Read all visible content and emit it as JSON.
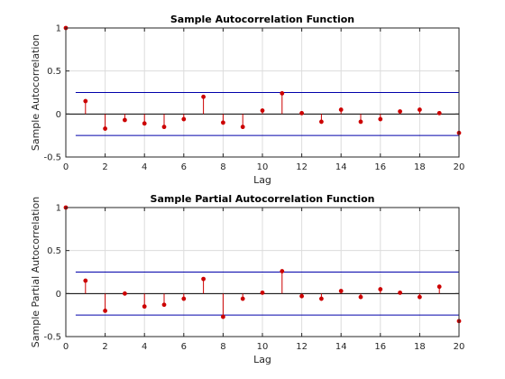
{
  "figure": {
    "background": "#ffffff",
    "stem_color": "#cc0000",
    "bound_color": "#0000aa",
    "grid": true
  },
  "chart_data": [
    {
      "type": "stem",
      "title": "Sample Autocorrelation Function",
      "xlabel": "Lag",
      "ylabel": "Sample Autocorrelation",
      "xlim": [
        0,
        20
      ],
      "ylim": [
        -0.5,
        1
      ],
      "xticks": [
        0,
        2,
        4,
        6,
        8,
        10,
        12,
        14,
        16,
        18,
        20
      ],
      "yticks": [
        -0.5,
        0,
        0.5,
        1
      ],
      "yticklabels": [
        "-0.5",
        "0",
        "0.5",
        "1"
      ],
      "lags": [
        0,
        1,
        2,
        3,
        4,
        5,
        6,
        7,
        8,
        9,
        10,
        11,
        12,
        13,
        14,
        15,
        16,
        17,
        18,
        19,
        20
      ],
      "values": [
        1.0,
        0.15,
        -0.17,
        -0.07,
        -0.11,
        -0.15,
        -0.06,
        0.2,
        -0.1,
        -0.15,
        0.04,
        0.24,
        0.01,
        -0.09,
        0.05,
        -0.09,
        -0.06,
        0.03,
        0.05,
        0.01,
        -0.22
      ],
      "confidence_bounds": [
        0.25,
        -0.25
      ]
    },
    {
      "type": "stem",
      "title": "Sample Partial Autocorrelation Function",
      "xlabel": "Lag",
      "ylabel": "Sample Partial Autocorrelation",
      "xlim": [
        0,
        20
      ],
      "ylim": [
        -0.5,
        1
      ],
      "xticks": [
        0,
        2,
        4,
        6,
        8,
        10,
        12,
        14,
        16,
        18,
        20
      ],
      "yticks": [
        -0.5,
        0,
        0.5,
        1
      ],
      "yticklabels": [
        "-0.5",
        "0",
        "0.5",
        "1"
      ],
      "lags": [
        0,
        1,
        2,
        3,
        4,
        5,
        6,
        7,
        8,
        9,
        10,
        11,
        12,
        13,
        14,
        15,
        16,
        17,
        18,
        19,
        20
      ],
      "values": [
        1.0,
        0.15,
        -0.2,
        0.0,
        -0.15,
        -0.13,
        -0.06,
        0.17,
        -0.27,
        -0.06,
        0.01,
        0.26,
        -0.03,
        -0.06,
        0.03,
        -0.04,
        0.05,
        0.01,
        -0.04,
        0.08,
        -0.32
      ],
      "confidence_bounds": [
        0.25,
        -0.25
      ]
    }
  ]
}
